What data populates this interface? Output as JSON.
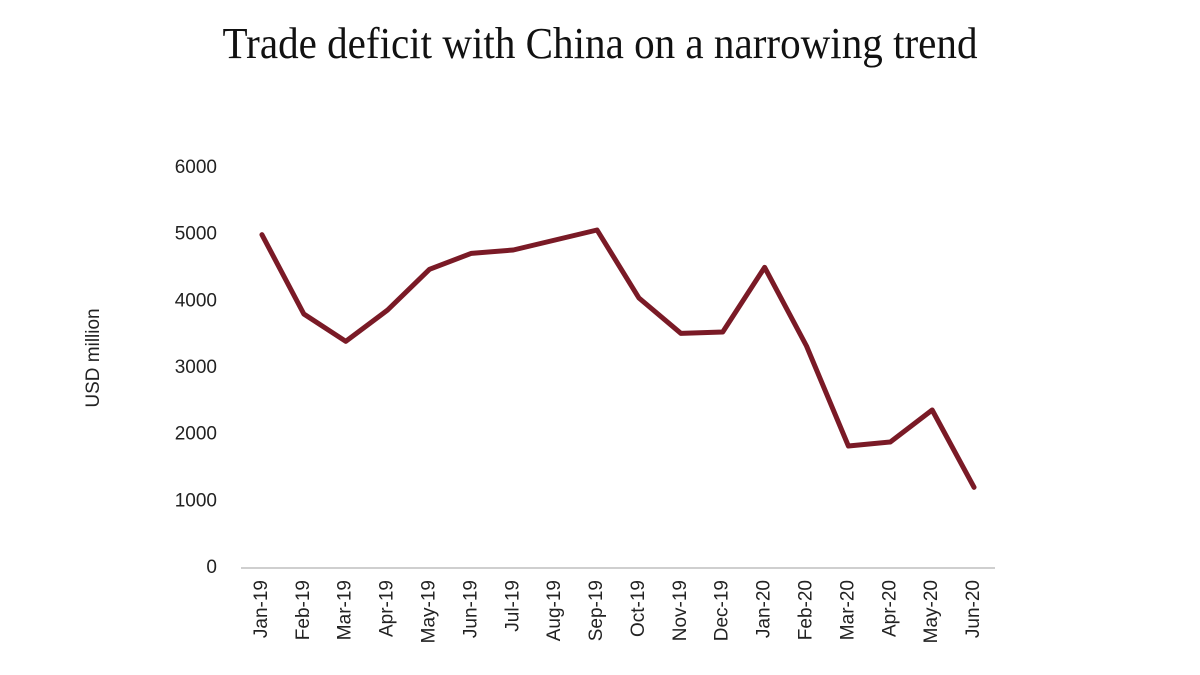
{
  "chart_data": {
    "type": "line",
    "title": "Trade deficit with China on a narrowing trend",
    "y_label": "USD million",
    "categories": [
      "Jan-19",
      "Feb-19",
      "Mar-19",
      "Apr-19",
      "May-19",
      "Jun-19",
      "Jul-19",
      "Aug-19",
      "Sep-19",
      "Oct-19",
      "Nov-19",
      "Dec-19",
      "Jan-20",
      "Feb-20",
      "Mar-20",
      "Apr-20",
      "May-20",
      "Jun-20"
    ],
    "series": [
      {
        "name": "Trade deficit with China",
        "color": "#7a1a26",
        "values": [
          5000,
          3810,
          3400,
          3870,
          4480,
          4720,
          4770,
          4920,
          5070,
          4050,
          3520,
          3540,
          4510,
          3330,
          1830,
          1890,
          2370,
          1210
        ]
      }
    ],
    "ylim": [
      0,
      6000
    ],
    "yticks": [
      0,
      1000,
      2000,
      3000,
      4000,
      5000,
      6000
    ],
    "grid": false
  }
}
